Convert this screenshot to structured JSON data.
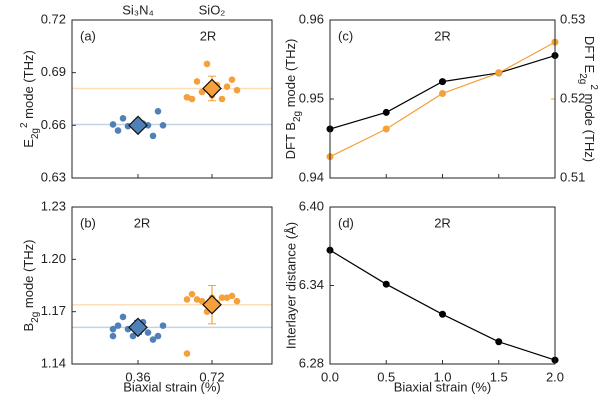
{
  "chart_data": [
    {
      "type": "strip",
      "label": "(a)",
      "annotation": "2R",
      "categories": [
        "Si₃N₄",
        "SiO₂"
      ],
      "category_labels": "top",
      "ylabel": {
        "main": "E",
        "sub": "2g",
        "sup": "2",
        "tail": " mode (THz)"
      },
      "ylim": [
        0.63,
        0.72
      ],
      "yticks": [
        0.63,
        0.66,
        0.69,
        0.72
      ],
      "series": [
        {
          "color": "#4f81b8",
          "values": [
            0.6605,
            0.66,
            0.6595,
            0.66,
            0.661,
            0.664,
            0.668,
            0.66,
            0.657,
            0.654,
            0.66
          ],
          "mean": 0.66,
          "error": 0.003,
          "ref": 0.6605
        },
        {
          "color": "#f5a03a",
          "values": [
            0.676,
            0.675,
            0.679,
            0.68,
            0.683,
            0.685,
            0.686,
            0.677,
            0.675,
            0.682,
            0.695,
            0.676
          ],
          "mean": 0.681,
          "error": 0.007,
          "ref": 0.681
        }
      ]
    },
    {
      "type": "strip",
      "label": "(b)",
      "annotation": "2R",
      "categories": [
        "0.36",
        "0.72"
      ],
      "category_labels": "bottom",
      "xlabel": "Biaxial strain (%)",
      "ylabel": {
        "main": "B",
        "sub": "2g",
        "tail": " mode (THz)"
      },
      "ylim": [
        1.14,
        1.23
      ],
      "yticks": [
        1.14,
        1.17,
        {
          "value": 1.2,
          "label": "1.20"
        },
        1.23
      ],
      "series": [
        {
          "color": "#4f81b8",
          "values": [
            1.156,
            1.158,
            1.16,
            1.162,
            1.164,
            1.167,
            1.156,
            1.158,
            1.162,
            1.154,
            1.156,
            1.16
          ],
          "mean": 1.161,
          "error": 0.004,
          "ref": 1.161
        },
        {
          "color": "#f5a03a",
          "values": [
            1.177,
            1.178,
            1.176,
            1.176,
            1.175,
            1.177,
            1.179,
            1.178,
            1.18,
            1.178,
            1.17,
            1.146
          ],
          "mean": 1.174,
          "error": 0.011,
          "ref": 1.174
        }
      ]
    },
    {
      "type": "line",
      "label": "(c)",
      "annotation": "2R",
      "x": [
        0,
        0.5,
        1,
        1.5,
        2
      ],
      "xlim": [
        0,
        2
      ],
      "xticks": [
        0,
        0.5,
        1,
        1.5,
        2
      ],
      "ylabel": {
        "main": "DFT B",
        "sub": "2g",
        "tail": " mode (THz)"
      },
      "y2label": {
        "main": "DFT E",
        "sub": "2g",
        "sup": "2",
        "tail": " mode (THz)"
      },
      "ylim": [
        0.94,
        0.96
      ],
      "yticks": [
        0.94,
        0.95,
        0.96
      ],
      "y2lim": [
        0.51,
        0.53
      ],
      "y2ticks": [
        0.51,
        0.52,
        0.53
      ],
      "series": [
        {
          "color": "#000000",
          "values": [
            0.9462,
            0.9483,
            0.9522,
            0.9533,
            0.9555
          ]
        },
        {
          "color": "#f5a03a",
          "axis": "y2",
          "values": [
            0.5127,
            0.5162,
            0.5207,
            0.5233,
            0.5272
          ]
        }
      ]
    },
    {
      "type": "line",
      "label": "(d)",
      "annotation": "2R",
      "x": [
        0,
        0.5,
        1,
        1.5,
        2
      ],
      "xlim": [
        0,
        2
      ],
      "xticks": [
        {
          "value": 0,
          "label": "0.0"
        },
        {
          "value": 0.5,
          "label": "0.5"
        },
        {
          "value": 1,
          "label": "1.0"
        },
        {
          "value": 1.5,
          "label": "1.5"
        },
        {
          "value": 2,
          "label": "2.0"
        }
      ],
      "xlabel": "Biaxial strain (%)",
      "ylabel": "Interlayer distance (Å)",
      "ylim": [
        6.28,
        6.4
      ],
      "yticks": [
        6.28,
        6.34,
        {
          "value": 6.4,
          "label": "6.40"
        }
      ],
      "series": [
        {
          "color": "#000000",
          "values": [
            6.367,
            6.341,
            6.318,
            6.297,
            6.283
          ]
        }
      ]
    }
  ]
}
